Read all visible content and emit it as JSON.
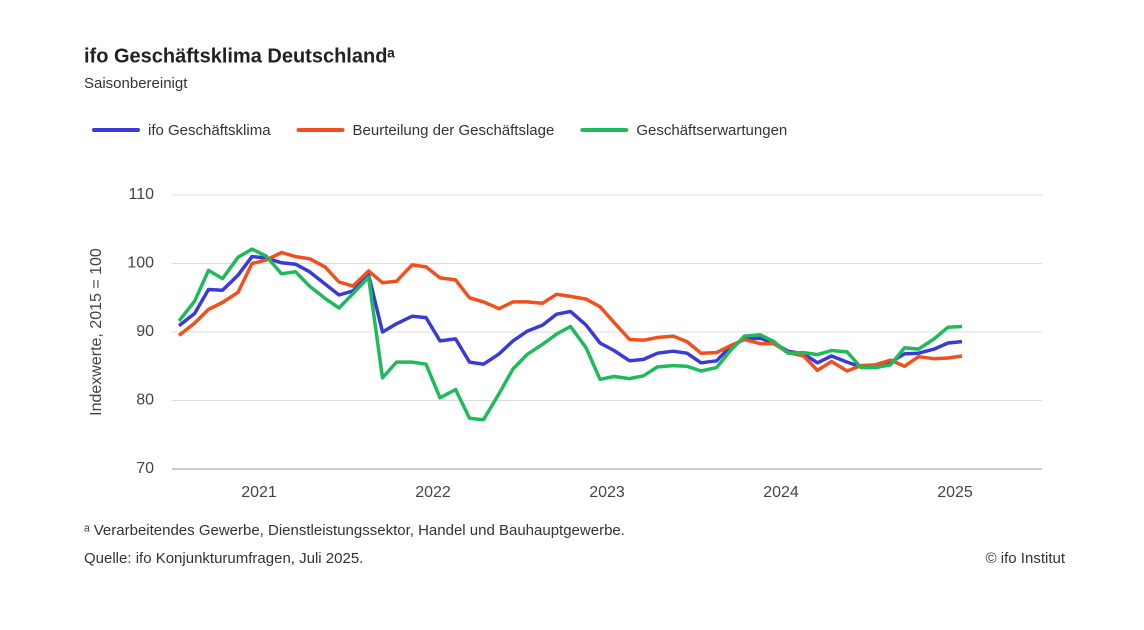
{
  "chart_data": {
    "type": "line",
    "title": "ifo Geschäftsklima Deutschlandᵃ",
    "subtitle": "Saisonbereinigt",
    "y_label": "Indexwerte, 2015 = 100",
    "footnote": "ᵃ Verarbeitendes Gewerbe, Dienstleistungssektor, Handel und Bauhauptgewerbe.",
    "source": "Quelle: ifo Konjunkturumfragen, Juli 2025.",
    "copyright": "© ifo Institut",
    "x": [
      2021.04,
      2021.13,
      2021.21,
      2021.29,
      2021.38,
      2021.46,
      2021.54,
      2021.63,
      2021.71,
      2021.79,
      2021.88,
      2021.96,
      2022.04,
      2022.13,
      2022.21,
      2022.29,
      2022.38,
      2022.46,
      2022.54,
      2022.63,
      2022.71,
      2022.79,
      2022.88,
      2022.96,
      2023.04,
      2023.13,
      2023.21,
      2023.29,
      2023.38,
      2023.46,
      2023.54,
      2023.63,
      2023.71,
      2023.79,
      2023.88,
      2023.96,
      2024.04,
      2024.13,
      2024.21,
      2024.29,
      2024.38,
      2024.46,
      2024.54,
      2024.63,
      2024.71,
      2024.79,
      2024.88,
      2024.96,
      2025.04,
      2025.13,
      2025.21,
      2025.29,
      2025.38,
      2025.46,
      2025.54
    ],
    "xlim": [
      2021,
      2026
    ],
    "xticks": [
      {
        "value": 2021.5,
        "label": "2021"
      },
      {
        "value": 2022.5,
        "label": "2022"
      },
      {
        "value": 2023.5,
        "label": "2023"
      },
      {
        "value": 2024.5,
        "label": "2024"
      },
      {
        "value": 2025.5,
        "label": "2025"
      }
    ],
    "ylim": [
      70,
      110
    ],
    "yticks": [
      70,
      80,
      90,
      100,
      110
    ],
    "grid": true,
    "series": [
      {
        "name": "ifo Geschäftsklima",
        "color": "#3a3ad6",
        "values": [
          90.9,
          92.7,
          96.2,
          96.1,
          98.3,
          101.0,
          100.8,
          100.1,
          99.9,
          98.8,
          97.0,
          95.4,
          96.0,
          98.3,
          90.0,
          91.2,
          92.3,
          92.1,
          88.7,
          89.0,
          85.6,
          85.3,
          86.8,
          88.7,
          90.1,
          91.0,
          92.6,
          93.0,
          91.0,
          88.4,
          87.3,
          85.8,
          86.0,
          86.9,
          87.2,
          86.9,
          85.5,
          85.8,
          87.9,
          89.0,
          89.1,
          88.4,
          87.2,
          86.8,
          85.5,
          86.5,
          85.6,
          84.9,
          85.0,
          85.6,
          86.8,
          86.9,
          87.5,
          88.4,
          88.6
        ]
      },
      {
        "name": "Beurteilung der Geschäftslage",
        "color": "#f0501e",
        "values": [
          89.5,
          91.3,
          93.3,
          94.3,
          95.8,
          100.0,
          100.5,
          101.6,
          101.0,
          100.7,
          99.5,
          97.3,
          96.7,
          98.9,
          97.2,
          97.4,
          99.8,
          99.5,
          97.9,
          97.6,
          95.0,
          94.4,
          93.4,
          94.4,
          94.4,
          94.2,
          95.5,
          95.2,
          94.8,
          93.7,
          91.4,
          88.9,
          88.8,
          89.2,
          89.4,
          88.6,
          86.9,
          87.0,
          88.0,
          88.9,
          88.3,
          88.3,
          87.0,
          86.5,
          84.4,
          85.7,
          84.3,
          85.1,
          85.2,
          85.9,
          85.0,
          86.4,
          86.1,
          86.2,
          86.5
        ]
      },
      {
        "name": "Geschäftserwartungen",
        "color": "#1fba5c",
        "values": [
          91.6,
          94.5,
          99.0,
          97.8,
          100.9,
          102.1,
          101.1,
          98.5,
          98.8,
          96.7,
          94.9,
          93.5,
          95.6,
          98.0,
          83.3,
          85.6,
          85.6,
          85.3,
          80.4,
          81.6,
          77.4,
          77.2,
          81.0,
          84.6,
          86.7,
          88.2,
          89.7,
          90.8,
          87.7,
          83.1,
          83.5,
          83.2,
          83.6,
          84.9,
          85.1,
          85.0,
          84.3,
          84.8,
          87.3,
          89.4,
          89.6,
          88.6,
          86.9,
          87.0,
          86.7,
          87.3,
          87.1,
          84.8,
          84.8,
          85.2,
          87.7,
          87.5,
          89.0,
          90.7,
          90.8
        ]
      }
    ]
  }
}
